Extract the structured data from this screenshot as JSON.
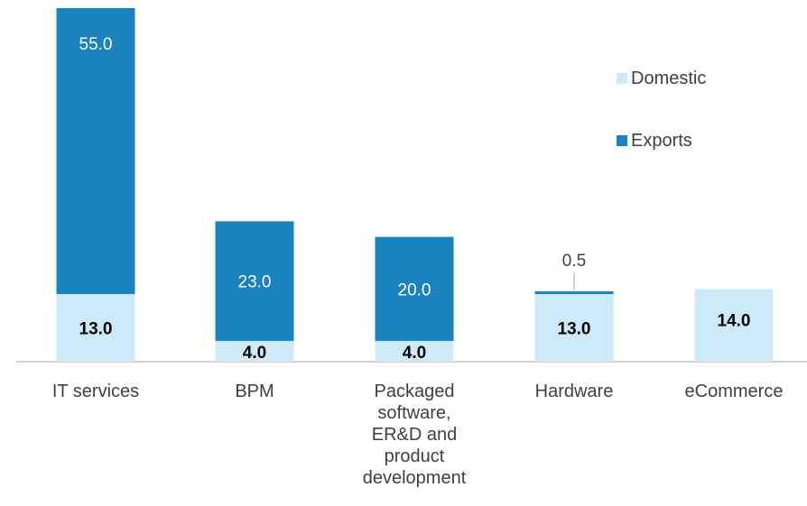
{
  "chart_data": {
    "type": "bar",
    "stacked": true,
    "categories": [
      "IT services",
      "BPM",
      "Packaged software, ER&D and product development",
      "Hardware",
      "eCommerce"
    ],
    "series": [
      {
        "name": "Domestic",
        "values": [
          13.0,
          4.0,
          4.0,
          13.0,
          14.0
        ],
        "color": "#cdeaf8"
      },
      {
        "name": "Exports",
        "values": [
          55.0,
          23.0,
          20.0,
          0.5,
          null
        ],
        "color": "#1a82bf"
      }
    ],
    "data_labels": {
      "Domestic": [
        "13.0",
        "4.0",
        "4.0",
        "13.0",
        "14.0"
      ],
      "Exports": [
        "55.0",
        "23.0",
        "20.0",
        "0.5",
        ""
      ]
    },
    "legend": {
      "position": "right",
      "items": [
        "Domestic",
        "Exports"
      ]
    },
    "title": "",
    "xlabel": "",
    "ylabel": "",
    "ylim": [
      0,
      68
    ],
    "grid": false,
    "colors": {
      "domestic": "#cdeaf8",
      "exports": "#1a82bf",
      "axis": "#a6a6a6",
      "text": "#404040",
      "label_dark": "#000000",
      "label_light": "#ffffff"
    }
  }
}
